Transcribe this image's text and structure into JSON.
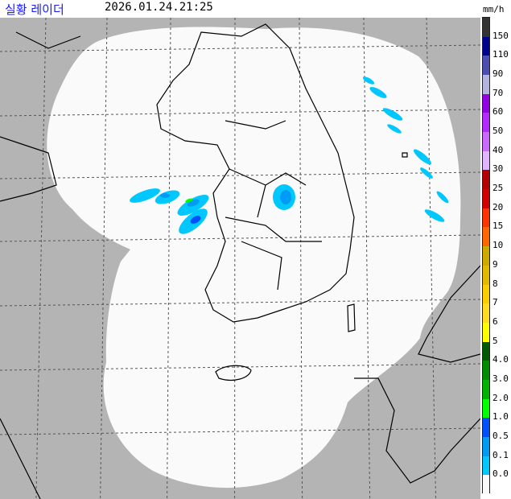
{
  "header": {
    "title": "실황 레이더",
    "timestamp": "2026.01.24.21:25",
    "unit": "mm/h"
  },
  "legend": {
    "labels": [
      "150",
      "110",
      "90",
      "70",
      "60",
      "50",
      "40",
      "30",
      "25",
      "20",
      "15",
      "10",
      "9",
      "8",
      "7",
      "6",
      "5",
      "4.0",
      "3.0",
      "2.0",
      "1.0",
      "0.5",
      "0.1",
      "0.0"
    ],
    "colors": [
      "#333333",
      "#000390",
      "#4c4eb1",
      "#b3b4de",
      "#9300e4",
      "#b329ff",
      "#c969ff",
      "#e0b4ff",
      "#b40000",
      "#d20000",
      "#ff3200",
      "#ff6600",
      "#ccaa00",
      "#e0b900",
      "#f9cd00",
      "#ffdc1f",
      "#ffff00",
      "#005a00",
      "#008c00",
      "#00b300",
      "#00ff00",
      "#0050ff",
      "#009bf5",
      "#00c8ff",
      "#fafafa"
    ]
  },
  "map": {
    "out_of_range_color": "#b4b4b4",
    "coverage_color": "#fafafa",
    "coastline_color": "#000000"
  }
}
